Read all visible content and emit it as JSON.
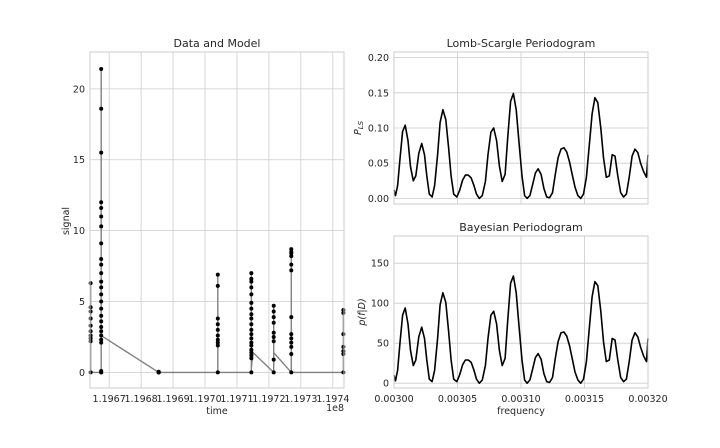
{
  "chart_data": [
    {
      "type": "scatter",
      "title": "Data and Model",
      "xlabel": "time",
      "ylabel": "signal",
      "x_offset_label": "1e8",
      "xlim": [
        119664000,
        119743500
      ],
      "ylim": [
        -1.1,
        22.6
      ],
      "xticks": [
        {
          "v": 119670000,
          "label": "1.1967"
        },
        {
          "v": 119680000,
          "label": "1.1968"
        },
        {
          "v": 119690000,
          "label": "1.1969"
        },
        {
          "v": 119700000,
          "label": "1.1970"
        },
        {
          "v": 119710000,
          "label": "1.1971"
        },
        {
          "v": 119720000,
          "label": "1.1972"
        },
        {
          "v": 119730000,
          "label": "1.1973"
        },
        {
          "v": 119740000,
          "label": "1.1974"
        }
      ],
      "yticks": [
        {
          "v": 0,
          "label": "0"
        },
        {
          "v": 5,
          "label": "5"
        },
        {
          "v": 10,
          "label": "10"
        },
        {
          "v": 15,
          "label": "15"
        },
        {
          "v": 20,
          "label": "20"
        }
      ],
      "grid": true,
      "point_color": "#000000",
      "model_color": "#808080",
      "clusters": [
        {
          "x": 119664200,
          "values": [
            6.3,
            4.6,
            4.3,
            3.8,
            3.3,
            2.9,
            2.6,
            2.4,
            2.2,
            0.0
          ]
        },
        {
          "x": 119667500,
          "values": [
            21.4,
            18.6,
            15.5,
            12.0,
            11.6,
            11.0,
            10.3,
            9.1,
            8.0,
            7.6,
            7.0,
            6.4,
            6.0,
            5.5,
            5.0,
            4.5,
            4.0,
            3.6,
            3.2,
            2.9,
            2.6,
            2.3,
            2.1,
            0.1,
            0.0,
            0.0
          ]
        },
        {
          "x": 119685500,
          "values": [
            0.05,
            0.0,
            0.0,
            0.0
          ]
        },
        {
          "x": 119704000,
          "values": [
            6.9,
            6.1,
            3.8,
            3.4,
            3.0,
            2.6,
            2.3,
            2.1,
            1.9,
            0.0
          ]
        },
        {
          "x": 119714500,
          "values": [
            7.0,
            6.6,
            6.4,
            6.0,
            5.5,
            4.9,
            4.5,
            4.1,
            3.8,
            3.4,
            3.0,
            2.7,
            2.4,
            2.1,
            1.9,
            1.6,
            1.4,
            1.2,
            1.0,
            0.0
          ]
        },
        {
          "x": 119721500,
          "values": [
            4.7,
            4.3,
            3.9,
            3.5,
            2.8,
            2.5,
            2.2,
            0.9,
            0.0
          ]
        },
        {
          "x": 119727000,
          "values": [
            8.7,
            8.5,
            8.4,
            8.2,
            7.6,
            7.2,
            3.9,
            2.7,
            2.4,
            2.1,
            1.8,
            1.3,
            0.0
          ]
        },
        {
          "x": 119743300,
          "values": [
            4.4,
            4.2,
            2.7,
            1.8,
            1.5,
            1.3,
            0.0
          ]
        }
      ],
      "model": [
        [
          119664000,
          6.3
        ],
        [
          119664200,
          6.3
        ],
        [
          119664200,
          0.1
        ],
        [
          119665000,
          0.0
        ],
        [
          119667500,
          0.0
        ],
        [
          119667500,
          21.4
        ],
        [
          119667500,
          2.6
        ],
        [
          119685500,
          0.0
        ],
        [
          119704000,
          0.0
        ],
        [
          119704000,
          6.9
        ],
        [
          119704000,
          0.0
        ],
        [
          119714500,
          0.0
        ],
        [
          119714500,
          7.0
        ],
        [
          119714500,
          0.3
        ],
        [
          119715000,
          1.4
        ],
        [
          119721500,
          0.0
        ],
        [
          119721500,
          4.7
        ],
        [
          119721500,
          1.4
        ],
        [
          119727000,
          0.0
        ],
        [
          119727000,
          8.7
        ],
        [
          119727000,
          0.0
        ],
        [
          119743300,
          0.0
        ],
        [
          119743300,
          4.4
        ]
      ]
    },
    {
      "type": "line",
      "title": "Lomb-Scargle Periodogram",
      "ylabel": "P_LS",
      "ylabel_main": "P",
      "ylabel_sub": "LS",
      "xlim": [
        0.003,
        0.0032
      ],
      "ylim": [
        -0.008,
        0.208
      ],
      "yticks": [
        {
          "v": 0.0,
          "label": "0.00"
        },
        {
          "v": 0.05,
          "label": "0.05"
        },
        {
          "v": 0.1,
          "label": "0.10"
        },
        {
          "v": 0.15,
          "label": "0.15"
        },
        {
          "v": 0.2,
          "label": "0.20"
        }
      ],
      "xgrid": [
        0.003,
        0.00305,
        0.0031,
        0.00315,
        0.0032
      ],
      "grid": true,
      "line_color": "#000000",
      "x": [
        0.003,
        0.0030012,
        0.0030028,
        0.0030048,
        0.0030068,
        0.0030088,
        0.003011,
        0.003013,
        0.0030152,
        0.0030172,
        0.0030195,
        0.0030218,
        0.003024,
        0.0030258,
        0.0030278,
        0.00303,
        0.003032,
        0.0030343,
        0.0030363,
        0.0030385,
        0.0030408,
        0.003043,
        0.003045,
        0.003047,
        0.0030495,
        0.0030518,
        0.003054,
        0.0030562,
        0.0030585,
        0.0030608,
        0.003063,
        0.003065,
        0.0030672,
        0.0030695,
        0.003072,
        0.003074,
        0.0030763,
        0.0030785,
        0.0030808,
        0.003083,
        0.0030852,
        0.0030875,
        0.0030895,
        0.0030918,
        0.003094,
        0.0030962,
        0.0030985,
        0.0031008,
        0.0031028,
        0.0031048,
        0.003107,
        0.0031092,
        0.0031113,
        0.0031135,
        0.0031158,
        0.003118,
        0.0031202,
        0.0031225,
        0.0031248,
        0.003127,
        0.0031292,
        0.0031315,
        0.0031338,
        0.003136,
        0.0031382,
        0.0031403,
        0.0031425,
        0.0031448,
        0.003147,
        0.0031492,
        0.0031515,
        0.0031537,
        0.003156,
        0.0031582,
        0.0031605,
        0.0031628,
        0.003165,
        0.0031672,
        0.0031695,
        0.0031718,
        0.003174,
        0.0031762,
        0.0031785,
        0.0031808,
        0.003183,
        0.0031852,
        0.0031875,
        0.0031898,
        0.003192,
        0.0031942,
        0.0031965,
        0.0031988,
        0.0032
      ],
      "values": [
        0.012,
        0.004,
        0.018,
        0.058,
        0.095,
        0.104,
        0.082,
        0.045,
        0.025,
        0.032,
        0.064,
        0.078,
        0.062,
        0.032,
        0.006,
        0.002,
        0.018,
        0.062,
        0.108,
        0.126,
        0.112,
        0.072,
        0.032,
        0.006,
        0.002,
        0.012,
        0.026,
        0.033,
        0.033,
        0.029,
        0.018,
        0.006,
        0.0,
        0.004,
        0.024,
        0.062,
        0.094,
        0.1,
        0.082,
        0.046,
        0.024,
        0.034,
        0.086,
        0.138,
        0.149,
        0.126,
        0.078,
        0.032,
        0.004,
        0.0,
        0.004,
        0.02,
        0.036,
        0.042,
        0.034,
        0.014,
        0.002,
        0.001,
        0.008,
        0.034,
        0.058,
        0.07,
        0.072,
        0.066,
        0.052,
        0.034,
        0.016,
        0.004,
        0.0,
        0.006,
        0.03,
        0.074,
        0.12,
        0.143,
        0.136,
        0.1,
        0.058,
        0.03,
        0.032,
        0.062,
        0.06,
        0.032,
        0.008,
        0.002,
        0.006,
        0.03,
        0.06,
        0.07,
        0.065,
        0.05,
        0.038,
        0.03,
        0.062
      ]
    },
    {
      "type": "line",
      "title": "Bayesian Periodogram",
      "xlabel": "frequency",
      "ylabel": "p(f|D)",
      "xlim": [
        0.003,
        0.0032
      ],
      "ylim": [
        -6,
        184
      ],
      "xticks": [
        {
          "v": 0.003,
          "label": "0.00300"
        },
        {
          "v": 0.00305,
          "label": "0.00305"
        },
        {
          "v": 0.0031,
          "label": "0.00310"
        },
        {
          "v": 0.00315,
          "label": "0.00315"
        },
        {
          "v": 0.0032,
          "label": "0.00320"
        }
      ],
      "yticks": [
        {
          "v": 0,
          "label": "0"
        },
        {
          "v": 50,
          "label": "50"
        },
        {
          "v": 100,
          "label": "100"
        },
        {
          "v": 150,
          "label": "150"
        }
      ],
      "grid": true,
      "line_color": "#000000",
      "x": [
        0.003,
        0.0030012,
        0.0030028,
        0.0030048,
        0.0030068,
        0.0030088,
        0.003011,
        0.003013,
        0.0030152,
        0.0030172,
        0.0030195,
        0.0030218,
        0.003024,
        0.0030258,
        0.0030278,
        0.00303,
        0.003032,
        0.0030343,
        0.0030363,
        0.0030385,
        0.0030408,
        0.003043,
        0.003045,
        0.003047,
        0.0030495,
        0.0030518,
        0.003054,
        0.0030562,
        0.0030585,
        0.0030608,
        0.003063,
        0.003065,
        0.0030672,
        0.0030695,
        0.003072,
        0.003074,
        0.0030763,
        0.0030785,
        0.0030808,
        0.003083,
        0.0030852,
        0.0030875,
        0.0030895,
        0.0030918,
        0.003094,
        0.0030962,
        0.0030985,
        0.0031008,
        0.0031028,
        0.0031048,
        0.003107,
        0.0031092,
        0.0031113,
        0.0031135,
        0.0031158,
        0.003118,
        0.0031202,
        0.0031225,
        0.0031248,
        0.003127,
        0.0031292,
        0.0031315,
        0.0031338,
        0.003136,
        0.0031382,
        0.0031403,
        0.0031425,
        0.0031448,
        0.003147,
        0.0031492,
        0.0031515,
        0.0031537,
        0.003156,
        0.0031582,
        0.0031605,
        0.0031628,
        0.003165,
        0.0031672,
        0.0031695,
        0.0031718,
        0.003174,
        0.0031762,
        0.0031785,
        0.0031808,
        0.003183,
        0.0031852,
        0.0031875,
        0.0031898,
        0.003192,
        0.0031942,
        0.0031965,
        0.0031988,
        0.0032
      ],
      "values": [
        10,
        3,
        16,
        52,
        85,
        94,
        74,
        41,
        22,
        29,
        58,
        70,
        56,
        29,
        5,
        2,
        16,
        56,
        98,
        113,
        101,
        65,
        29,
        5,
        2,
        11,
        23,
        29,
        29,
        26,
        16,
        5,
        0,
        4,
        22,
        56,
        85,
        90,
        74,
        41,
        22,
        31,
        78,
        125,
        134,
        113,
        70,
        29,
        4,
        0,
        4,
        18,
        32,
        37,
        30,
        12,
        2,
        1,
        7,
        31,
        52,
        63,
        64,
        59,
        47,
        31,
        14,
        4,
        0,
        5,
        27,
        67,
        108,
        127,
        122,
        90,
        52,
        27,
        29,
        56,
        54,
        29,
        7,
        2,
        5,
        27,
        54,
        63,
        58,
        45,
        34,
        27,
        56
      ]
    }
  ]
}
